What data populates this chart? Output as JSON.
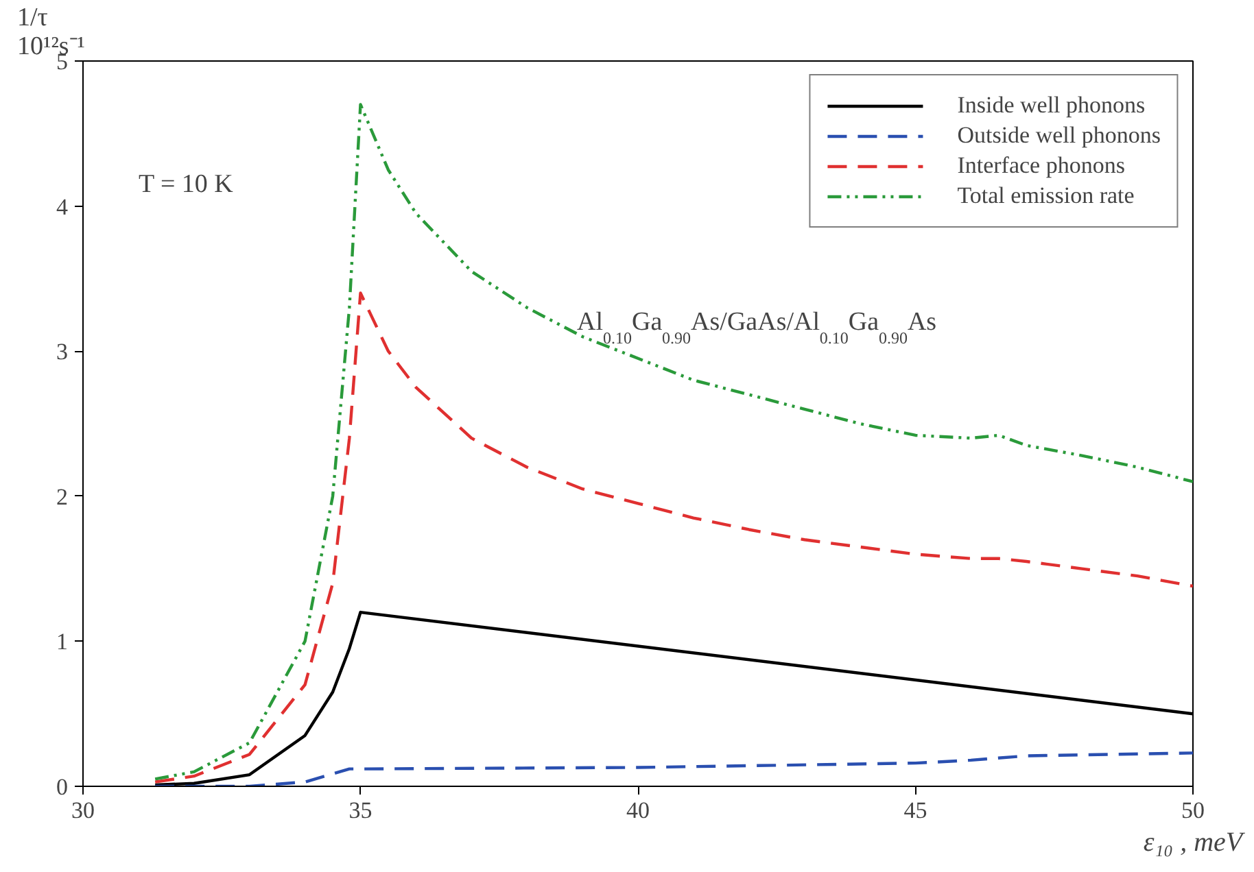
{
  "chart_data": {
    "type": "line",
    "xlabel": "ε₁₀ , meV",
    "ylabel": "1/τ 10¹²s⁻¹",
    "xlim": [
      30,
      50
    ],
    "ylim": [
      0,
      5
    ],
    "xticks": [
      30,
      35,
      40,
      45,
      50
    ],
    "yticks": [
      0,
      1,
      2,
      3,
      4,
      5
    ],
    "grid": false,
    "legend": "top right",
    "annotations": [
      {
        "text": "T = 10 K"
      },
      {
        "text": "Al$_{0.10}$Ga$_{0.90}$As/GaAs/Al$_{0.10}$Ga$_{0.90}$As"
      }
    ],
    "series": [
      {
        "name": "Inside well phonons",
        "color": "#000000",
        "line_style": "solid",
        "x": [
          31.3,
          32,
          33,
          34,
          34.5,
          34.8,
          35,
          50
        ],
        "values": [
          0.01,
          0.02,
          0.08,
          0.35,
          0.65,
          0.95,
          1.2,
          0.5
        ]
      },
      {
        "name": "Outside well phonons",
        "color": "#2a4fb0",
        "line_style": "dashed",
        "x": [
          31.3,
          33,
          34,
          34.8,
          35,
          40,
          45,
          46,
          47,
          50
        ],
        "values": [
          0,
          0,
          0.03,
          0.12,
          0.12,
          0.13,
          0.16,
          0.18,
          0.21,
          0.23
        ]
      },
      {
        "name": "Interface phonons",
        "color": "#e03030",
        "line_style": "dashed",
        "x": [
          31.3,
          32,
          33,
          34,
          34.5,
          34.8,
          35,
          35.5,
          36,
          37,
          38,
          39,
          40,
          41,
          42,
          43,
          44,
          45,
          46,
          46.5,
          47,
          48,
          49,
          50
        ],
        "values": [
          0.03,
          0.07,
          0.22,
          0.7,
          1.4,
          2.4,
          3.4,
          3.0,
          2.75,
          2.4,
          2.2,
          2.05,
          1.95,
          1.85,
          1.77,
          1.7,
          1.65,
          1.6,
          1.57,
          1.57,
          1.55,
          1.5,
          1.45,
          1.38
        ]
      },
      {
        "name": "Total emission rate",
        "color": "#2a9a3a",
        "line_style": "dashdot",
        "x": [
          31.3,
          32,
          33,
          34,
          34.5,
          34.8,
          35,
          35.5,
          36,
          37,
          38,
          39,
          40,
          41,
          42,
          43,
          44,
          45,
          46,
          46.5,
          47,
          48,
          49,
          50
        ],
        "values": [
          0.05,
          0.1,
          0.3,
          1.0,
          2.0,
          3.3,
          4.7,
          4.25,
          3.95,
          3.55,
          3.3,
          3.1,
          2.95,
          2.8,
          2.7,
          2.6,
          2.5,
          2.42,
          2.4,
          2.42,
          2.35,
          2.28,
          2.2,
          2.1
        ]
      }
    ]
  }
}
